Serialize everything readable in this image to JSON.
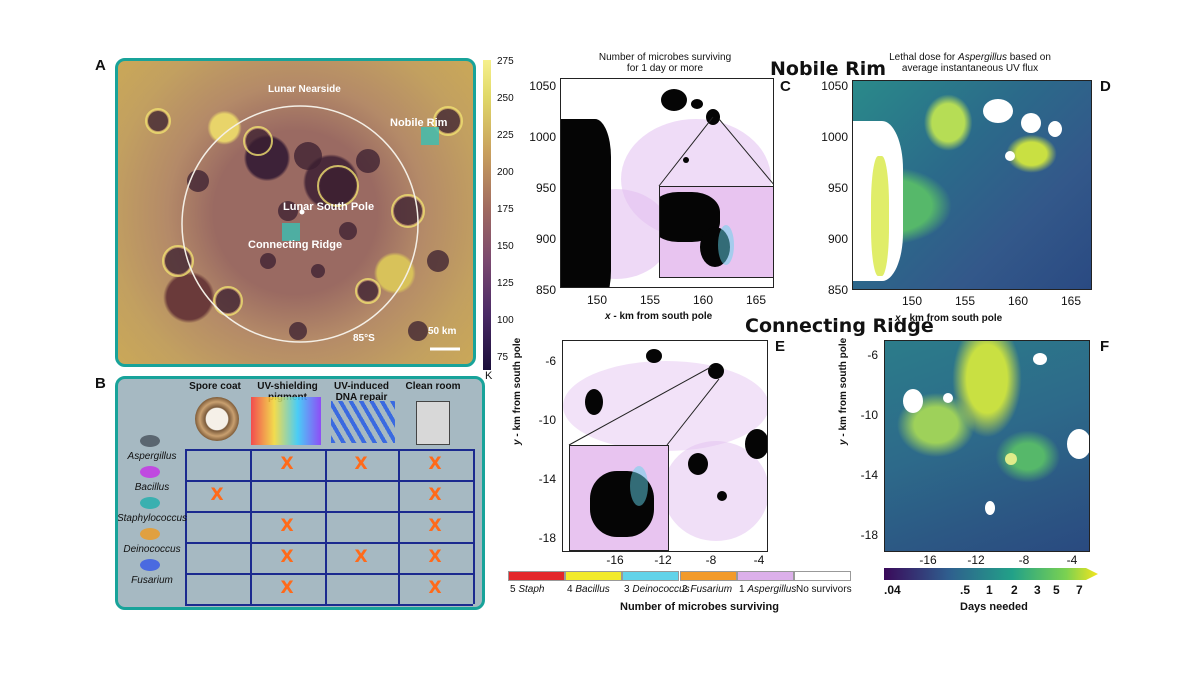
{
  "panel_a": {
    "label": "A",
    "map_labels": {
      "nearside": "Lunar Nearside",
      "nobile": "Nobile Rim",
      "south_pole": "Lunar South Pole",
      "ridge": "Connecting Ridge",
      "latitude": "85°S",
      "scale": "50 km"
    },
    "colorbar": {
      "ticks": [
        "275",
        "250",
        "225",
        "200",
        "175",
        "150",
        "125",
        "100",
        "75"
      ],
      "unit": "K"
    }
  },
  "panel_b": {
    "label": "B",
    "columns": [
      "Spore coat",
      "UV-shielding pigment",
      "UV-induced DNA repair",
      "Clean room"
    ],
    "rows": [
      {
        "name": "Aspergillus",
        "marks": [
          false,
          true,
          true,
          true
        ]
      },
      {
        "name": "Bacillus",
        "marks": [
          true,
          false,
          false,
          true
        ]
      },
      {
        "name": "Staphylococcus",
        "marks": [
          false,
          true,
          false,
          true
        ]
      },
      {
        "name": "Deinococcus",
        "marks": [
          false,
          true,
          true,
          true
        ]
      },
      {
        "name": "Fusarium",
        "marks": [
          false,
          true,
          false,
          true
        ]
      }
    ],
    "mark": "X"
  },
  "headings": {
    "nobile": "Nobile Rim",
    "ridge": "Connecting Ridge"
  },
  "panel_c": {
    "label": "C",
    "title_line1": "Number of microbes surviving",
    "title_line2": "for 1 day or more",
    "y_ticks": [
      "1050",
      "1000",
      "950",
      "900",
      "850"
    ],
    "x_ticks": [
      "150",
      "155",
      "160",
      "165"
    ],
    "xlabel_var": "x",
    "xlabel_rest": " - km from south pole"
  },
  "panel_d": {
    "label": "D",
    "title_line1": "Lethal dose for ",
    "title_italic": "Aspergillus",
    "title_line1_end": " based on",
    "title_line2": "average instantaneous UV flux",
    "y_ticks": [
      "1050",
      "1000",
      "950",
      "900",
      "850"
    ],
    "x_ticks": [
      "150",
      "155",
      "160",
      "165"
    ],
    "xlabel_var": "x",
    "xlabel_rest": " - km from south pole"
  },
  "panel_e": {
    "label": "E",
    "y_ticks": [
      "-6",
      "-10",
      "-14",
      "-18"
    ],
    "x_ticks": [
      "-16",
      "-12",
      "-8",
      "-4"
    ],
    "ylabel_var": "y",
    "ylabel_rest": " - km from south pole",
    "legend_items": [
      {
        "num": "5",
        "name": "Staph",
        "color": "#e3262a"
      },
      {
        "num": "4",
        "name": "Bacillus",
        "color": "#f2ea2a"
      },
      {
        "num": "3",
        "name": "Deinococcus",
        "color": "#62d3e9"
      },
      {
        "num": "2",
        "name": "Fusarium",
        "color": "#f29a2a"
      },
      {
        "num": "1",
        "name": "Aspergillus",
        "color": "#dcb0ea"
      },
      {
        "num": "",
        "name": "No survivors",
        "color": "#ffffff"
      }
    ],
    "legend_title": "Number of microbes surviving"
  },
  "panel_f": {
    "label": "F",
    "y_ticks": [
      "-6",
      "-10",
      "-14",
      "-18"
    ],
    "x_ticks": [
      "-16",
      "-12",
      "-8",
      "-4"
    ],
    "ylabel_var": "y",
    "ylabel_rest": " - km from south pole",
    "colorbar_ticks": [
      ".04",
      ".5",
      "1",
      "2",
      "3",
      "5",
      "7"
    ],
    "colorbar_title": "Days needed"
  }
}
